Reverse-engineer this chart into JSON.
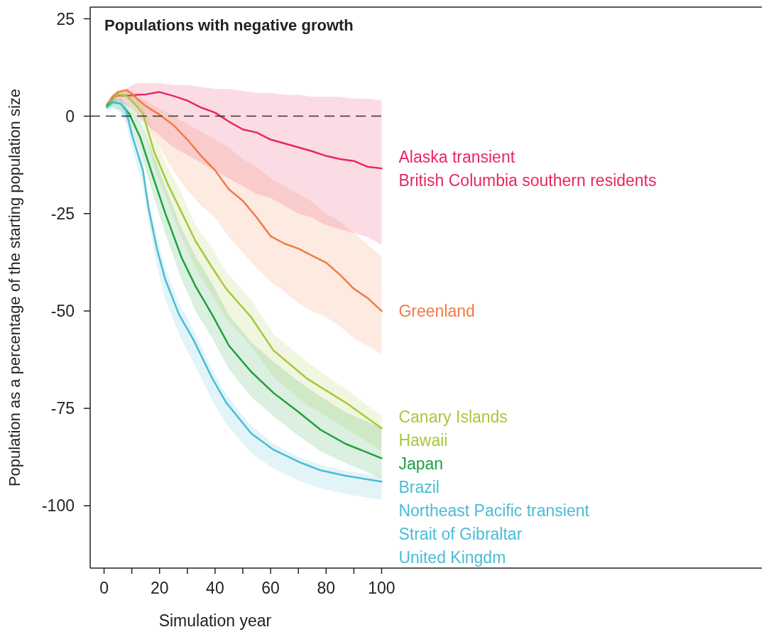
{
  "chart_data": {
    "type": "line",
    "title": "Populations with negative growth",
    "xlabel": "Simulation year",
    "ylabel": "Population as a percentage of the starting population size",
    "xlim": [
      -5,
      237
    ],
    "ylim": [
      -116,
      28
    ],
    "xticks": [
      0,
      {
        "value": 10,
        "label": null
      },
      20,
      {
        "value": 30,
        "label": null
      },
      40,
      {
        "value": 50,
        "label": null
      },
      60,
      {
        "value": 70,
        "label": null
      },
      80,
      {
        "value": 90,
        "label": null
      },
      100
    ],
    "yticks": [
      -100,
      -75,
      -50,
      -25,
      0,
      25
    ],
    "ref_lines": [
      {
        "axis": "y",
        "value": 0,
        "color": "#333333",
        "line_style": "dashed"
      }
    ],
    "series": [
      {
        "name": "Alaska transient\nBritish Columbia southern residents",
        "color": "#e8275e",
        "x": [
          1,
          3,
          5,
          8,
          10,
          12,
          15,
          20,
          25,
          30,
          35,
          40,
          45,
          50,
          55,
          60,
          65,
          70,
          75,
          80,
          85,
          90,
          95,
          100
        ],
        "values": [
          2.9,
          4.5,
          5.3,
          5.3,
          5.3,
          5.5,
          5.6,
          6.2,
          5.2,
          4.0,
          2.2,
          0.9,
          -1.4,
          -3.4,
          -4.2,
          -6,
          -7,
          -8,
          -9,
          -10.2,
          -11,
          -11.5,
          -13,
          -13.4
        ],
        "upper": [
          3.5,
          5,
          6,
          7,
          8,
          8.5,
          8.5,
          8.5,
          8,
          8,
          7.5,
          7,
          7,
          6.5,
          6,
          6,
          5.5,
          5.5,
          5,
          5,
          5,
          4.5,
          4.5,
          4
        ],
        "lower": [
          2,
          3,
          4,
          3,
          2,
          0,
          -2,
          -5,
          -8,
          -10,
          -12,
          -14,
          -16,
          -18,
          -20,
          -21,
          -23,
          -25,
          -26,
          -28,
          -29,
          -30,
          -31,
          -33
        ]
      },
      {
        "name": "Greenland",
        "color": "#f07a45",
        "x": [
          1,
          3,
          5,
          8,
          10,
          12,
          15,
          20,
          25,
          30,
          35,
          40,
          45,
          50,
          55,
          60,
          65,
          70,
          75,
          80,
          85,
          90,
          95,
          100
        ],
        "values": [
          2.9,
          5,
          6.2,
          6.7,
          5.8,
          4.4,
          2.6,
          0.4,
          -2.3,
          -6,
          -10.2,
          -13.9,
          -18.8,
          -21.7,
          -26,
          -30.8,
          -32.7,
          -34,
          -35.8,
          -37.6,
          -40.7,
          -44.3,
          -46.7,
          -50
        ],
        "upper": [
          3.5,
          5.5,
          6.8,
          7,
          6.5,
          5.5,
          4,
          2,
          0,
          -2,
          -4,
          -6,
          -8,
          -11,
          -13,
          -16,
          -18,
          -20,
          -22,
          -25,
          -27,
          -30,
          -33,
          -36
        ],
        "lower": [
          2,
          4,
          5,
          5,
          4,
          2,
          -1,
          -8,
          -14,
          -19,
          -23,
          -26,
          -31,
          -35,
          -39,
          -42.5,
          -45,
          -48,
          -50,
          -51.6,
          -54,
          -57,
          -59,
          -61
        ]
      },
      {
        "name": "Canary Islands\nHawaii",
        "color": "#a8c83c",
        "x": [
          1,
          5,
          8,
          11,
          14,
          18,
          23,
          28,
          33,
          39,
          44,
          53,
          61,
          73,
          87,
          100
        ],
        "values": [
          2.9,
          5.6,
          5.3,
          3.2,
          0.7,
          -9,
          -17.5,
          -24.8,
          -32.1,
          -38.9,
          -44.3,
          -51.6,
          -60.1,
          -67.3,
          -73.5,
          -80.1
        ],
        "upper": [
          3.5,
          6.5,
          6.5,
          5,
          3,
          -5,
          -13,
          -20,
          -28,
          -34,
          -40,
          -47,
          -56,
          -63,
          -70,
          -77
        ],
        "lower": [
          2.5,
          4.5,
          4,
          1.5,
          -2,
          -13,
          -22,
          -31,
          -39,
          -46,
          -52,
          -59,
          -67,
          -74,
          -80,
          -86
        ]
      },
      {
        "name": "Japan",
        "color": "#1fa03c",
        "x": [
          1,
          3,
          6,
          9,
          13,
          18,
          22,
          28,
          33,
          39,
          45,
          53,
          61,
          70,
          78,
          87,
          100
        ],
        "values": [
          2.6,
          3.6,
          3.2,
          0.7,
          -5.4,
          -16.3,
          -24.8,
          -36.4,
          -43.7,
          -51,
          -58.9,
          -65.6,
          -71,
          -75.9,
          -80.5,
          -84.1,
          -87.8
        ],
        "upper": [
          3.2,
          4.5,
          4.5,
          3,
          -1,
          -10,
          -18,
          -29,
          -36,
          -43,
          -51,
          -58,
          -63,
          -68,
          -72,
          -76,
          -80
        ],
        "lower": [
          2,
          2.5,
          1.5,
          -2,
          -9,
          -21,
          -30,
          -42,
          -50,
          -57,
          -65,
          -72,
          -77,
          -82,
          -86,
          -89,
          -93
        ]
      },
      {
        "name": "Brazil\nNortheast Pacific transient\nStrait of Gibraltar\nUnited Kingdm",
        "color": "#4bbcd6",
        "x": [
          1,
          3,
          6,
          8,
          10,
          14,
          16,
          19,
          22,
          27,
          32,
          39,
          44,
          53,
          61,
          70,
          78,
          87,
          100
        ],
        "values": [
          2.2,
          3.6,
          3.2,
          1.3,
          -4.7,
          -13.9,
          -23.5,
          -33.9,
          -41.8,
          -50.9,
          -57.1,
          -67.3,
          -73.5,
          -81.4,
          -85.6,
          -88.7,
          -90.9,
          -92.3,
          -93.8
        ],
        "upper": [
          3,
          4.5,
          4.5,
          3,
          -3,
          -12,
          -21,
          -31,
          -39,
          -48,
          -54.5,
          -65,
          -71.5,
          -79.5,
          -84,
          -87.5,
          -89.5,
          -91,
          -92.5
        ],
        "lower": [
          1,
          2,
          1,
          -2,
          -8,
          -18,
          -27,
          -38,
          -47,
          -56,
          -63,
          -73,
          -79,
          -86.5,
          -90.5,
          -93.5,
          -95.5,
          -97,
          -98.5
        ]
      }
    ]
  }
}
